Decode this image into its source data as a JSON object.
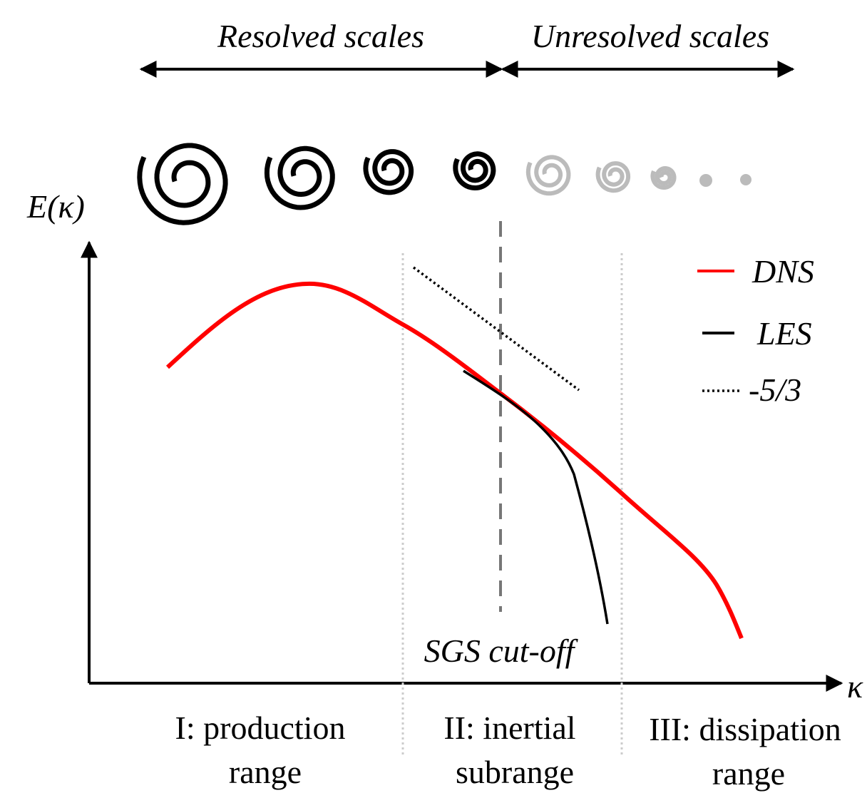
{
  "header": {
    "resolved": "Resolved scales",
    "unresolved": "Unresolved scales"
  },
  "axes": {
    "y_label": "E(κ)",
    "x_label": "κ"
  },
  "legend": [
    {
      "label": "DNS",
      "color": "#ff0000"
    },
    {
      "label": "LES",
      "color": "#000000"
    },
    {
      "label": "-5/3",
      "color": "#000000"
    }
  ],
  "annotations": {
    "cutoff": "SGS cut-off"
  },
  "ranges": [
    {
      "lines": [
        "I: production",
        "range"
      ]
    },
    {
      "lines": [
        "II: inertial",
        "subrange"
      ]
    },
    {
      "lines": [
        "III: dissipation",
        "range"
      ]
    }
  ]
}
